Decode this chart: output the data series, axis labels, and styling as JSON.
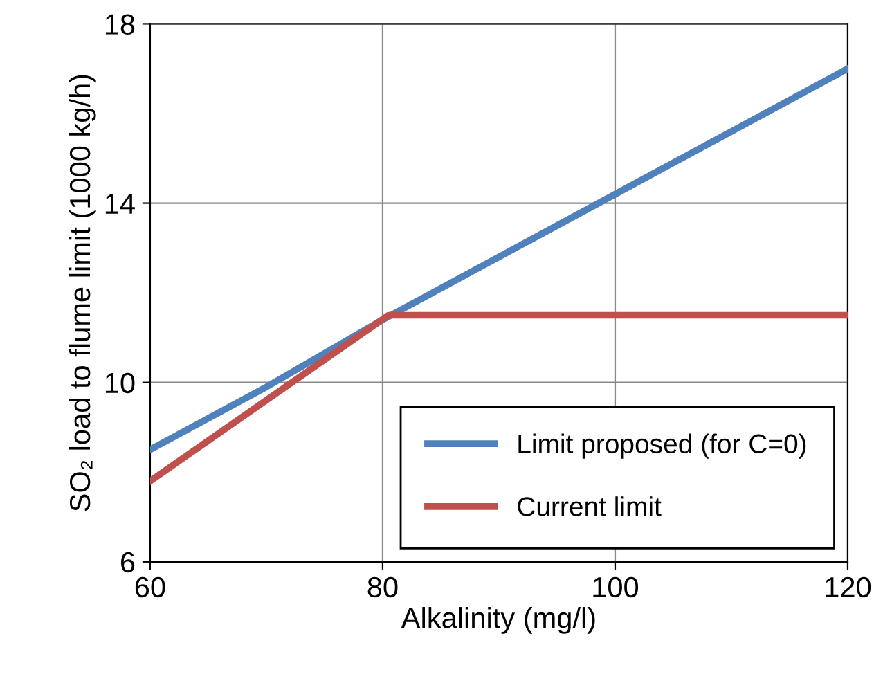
{
  "chart_data": {
    "type": "line",
    "xlabel": "Alkalinity (mg/l)",
    "ylabel": "SO₂ load to flume limit (1000 kg/h)",
    "xlim": [
      60,
      120
    ],
    "xticks": [
      60,
      80,
      100,
      120
    ],
    "ylim": [
      6,
      18
    ],
    "yticks": [
      6,
      10,
      14,
      18
    ],
    "grid": true,
    "legend": "bottom right",
    "line_style": "solid",
    "marker": "none",
    "series": [
      {
        "name": "Limit proposed (for C=0)",
        "color": "#4f81bd",
        "x": [
          60,
          70,
          80,
          90,
          100,
          110,
          120
        ],
        "values": [
          8.5,
          9.9,
          11.4,
          12.8,
          14.2,
          15.6,
          17.0
        ]
      },
      {
        "name": "Current limit",
        "color": "#c0504d",
        "x": [
          60,
          80.5,
          120
        ],
        "values": [
          7.8,
          11.5,
          11.5
        ]
      }
    ]
  }
}
